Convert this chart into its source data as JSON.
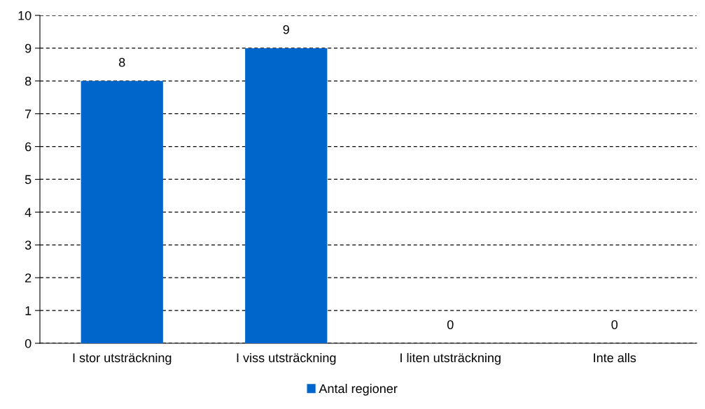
{
  "chart_data": {
    "type": "bar",
    "categories": [
      "I stor utsträckning",
      "I viss utsträckning",
      "I liten utsträckning",
      "Inte alls"
    ],
    "series": [
      {
        "name": "Antal regioner",
        "color": "#0066cc",
        "values": [
          8,
          9,
          0,
          0
        ]
      }
    ],
    "ylim": [
      0,
      10
    ],
    "yticks": [
      0,
      1,
      2,
      3,
      4,
      5,
      6,
      7,
      8,
      9,
      10
    ],
    "grid": "y",
    "legend": "bottom",
    "data_labels": true
  }
}
